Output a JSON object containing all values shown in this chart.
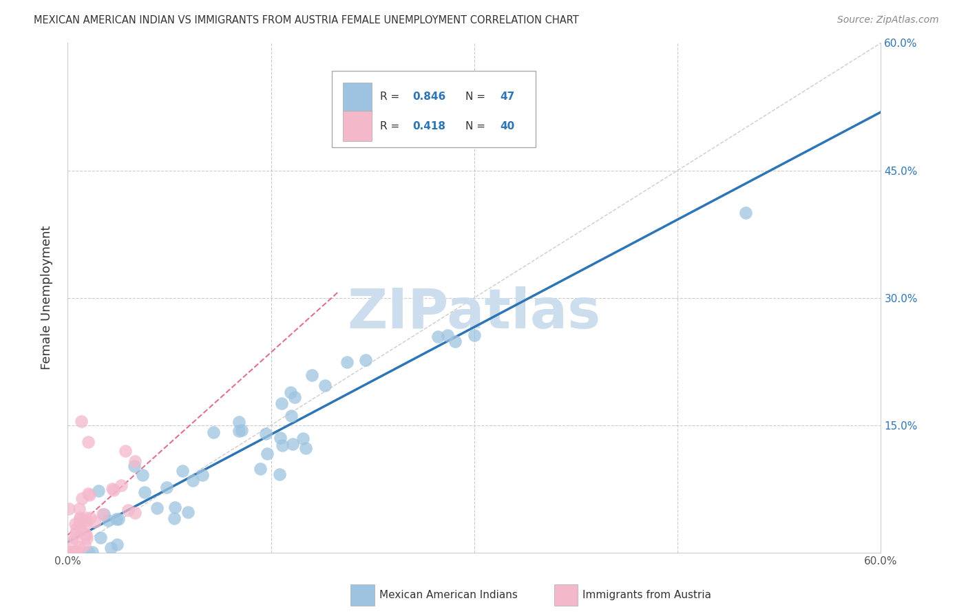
{
  "title": "MEXICAN AMERICAN INDIAN VS IMMIGRANTS FROM AUSTRIA FEMALE UNEMPLOYMENT CORRELATION CHART",
  "source": "Source: ZipAtlas.com",
  "ylabel": "Female Unemployment",
  "xlim": [
    0,
    0.6
  ],
  "ylim": [
    0,
    0.6
  ],
  "xticks": [
    0.0,
    0.15,
    0.3,
    0.45,
    0.6
  ],
  "yticks": [
    0.0,
    0.15,
    0.3,
    0.45,
    0.6
  ],
  "xtick_labels": [
    "0.0%",
    "",
    "",
    "",
    "60.0%"
  ],
  "right_ytick_labels": [
    "",
    "15.0%",
    "30.0%",
    "45.0%",
    "60.0%"
  ],
  "blue_color": "#9dc3e0",
  "pink_color": "#f4b8cb",
  "blue_line_color": "#2e75b6",
  "pink_line_color": "#e07090",
  "watermark": "ZIPatlas",
  "watermark_color": "#ccdded",
  "legend_r1": "R = 0.846",
  "legend_n1": "N = 47",
  "legend_r2": "R = 0.418",
  "legend_n2": "N = 40",
  "blue_r": 0.846,
  "blue_n": 47,
  "pink_r": 0.418,
  "pink_n": 40,
  "blue_line_slope": 0.96,
  "blue_line_intercept": -0.005,
  "pink_line_slope": 1.8,
  "pink_line_intercept": 0.005
}
